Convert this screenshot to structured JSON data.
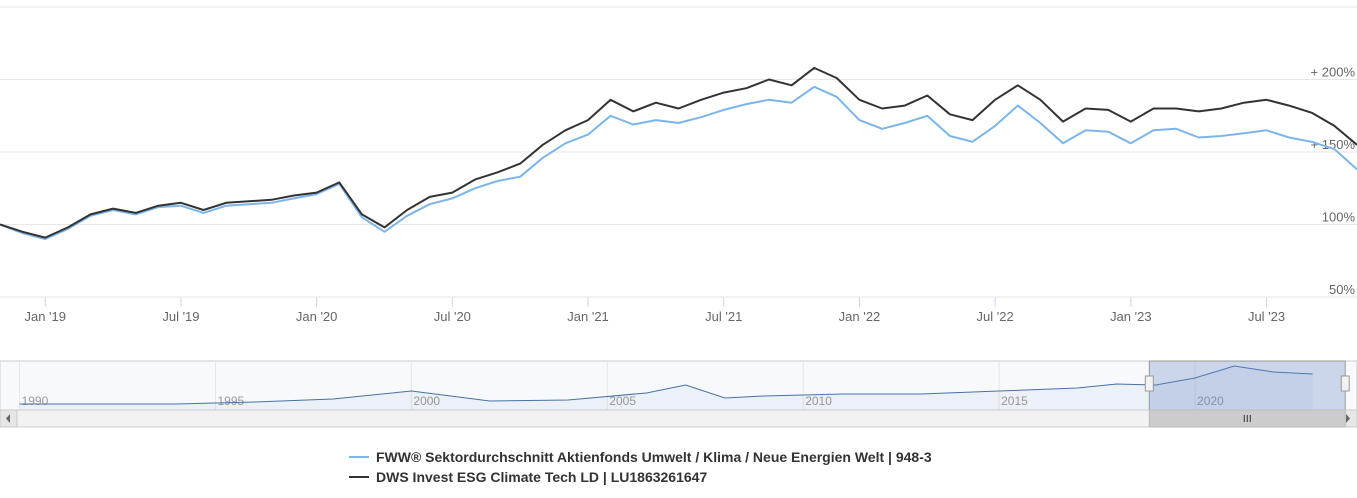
{
  "chart_data": [
    {
      "type": "line",
      "x": [
        "2018-11",
        "2018-12",
        "2019-01",
        "2019-02",
        "2019-03",
        "2019-04",
        "2019-05",
        "2019-06",
        "2019-07",
        "2019-08",
        "2019-09",
        "2019-10",
        "2019-11",
        "2019-12",
        "2020-01",
        "2020-02",
        "2020-03",
        "2020-04",
        "2020-05",
        "2020-06",
        "2020-07",
        "2020-08",
        "2020-09",
        "2020-10",
        "2020-11",
        "2020-12",
        "2021-01",
        "2021-02",
        "2021-03",
        "2021-04",
        "2021-05",
        "2021-06",
        "2021-07",
        "2021-08",
        "2021-09",
        "2021-10",
        "2021-11",
        "2021-12",
        "2022-01",
        "2022-02",
        "2022-03",
        "2022-04",
        "2022-05",
        "2022-06",
        "2022-07",
        "2022-08",
        "2022-09",
        "2022-10",
        "2022-11",
        "2022-12",
        "2023-01",
        "2023-02",
        "2023-03",
        "2023-04",
        "2023-05",
        "2023-06",
        "2023-07",
        "2023-08",
        "2023-09",
        "2023-10",
        "2023-11"
      ],
      "series": [
        {
          "name": "FWW® Sektordurchschnitt Aktienfonds Umwelt / Klima / Neue Energien Welt | 948-3",
          "color": "#7cb5ec",
          "values": [
            100,
            94,
            90,
            97,
            106,
            110,
            107,
            112,
            113,
            108,
            113,
            114,
            115,
            118,
            121,
            128,
            105,
            95,
            106,
            114,
            118,
            125,
            130,
            133,
            146,
            156,
            162,
            175,
            169,
            172,
            170,
            174,
            179,
            183,
            186,
            184,
            195,
            188,
            172,
            166,
            170,
            175,
            161,
            157,
            168,
            182,
            170,
            156,
            165,
            164,
            156,
            165,
            166,
            160,
            161,
            163,
            165,
            160,
            157,
            152,
            138
          ]
        },
        {
          "name": "DWS Invest ESG Climate Tech LD | LU1863261647",
          "color": "#333333",
          "values": [
            100,
            95,
            91,
            98,
            107,
            111,
            108,
            113,
            115,
            110,
            115,
            116,
            117,
            120,
            122,
            129,
            107,
            98,
            110,
            119,
            122,
            131,
            136,
            142,
            155,
            165,
            172,
            186,
            178,
            184,
            180,
            186,
            191,
            194,
            200,
            196,
            208,
            201,
            186,
            180,
            182,
            189,
            176,
            172,
            186,
            196,
            186,
            171,
            180,
            179,
            171,
            180,
            180,
            178,
            180,
            184,
            186,
            182,
            177,
            168,
            155
          ]
        }
      ],
      "xlim": [
        "2018-11",
        "2023-11"
      ],
      "xticks": [
        {
          "value": "2019-01",
          "label": "Jan '19"
        },
        {
          "value": "2019-07",
          "label": "Jul '19"
        },
        {
          "value": "2020-01",
          "label": "Jan '20"
        },
        {
          "value": "2020-07",
          "label": "Jul '20"
        },
        {
          "value": "2021-01",
          "label": "Jan '21"
        },
        {
          "value": "2021-07",
          "label": "Jul '21"
        },
        {
          "value": "2022-01",
          "label": "Jan '22"
        },
        {
          "value": "2022-07",
          "label": "Jul '22"
        },
        {
          "value": "2023-01",
          "label": "Jan '23"
        },
        {
          "value": "2023-07",
          "label": "Jul '23"
        }
      ],
      "ylim": [
        50,
        250
      ],
      "yticks": [
        {
          "value": 50,
          "label": "50%"
        },
        {
          "value": 100,
          "label": "100%"
        },
        {
          "value": 150,
          "label": "+ 150%"
        },
        {
          "value": 200,
          "label": "+ 200%"
        }
      ],
      "grid": true
    },
    {
      "type": "area",
      "x": [
        1990,
        1992,
        1994,
        1996,
        1998,
        2000,
        2002,
        2004,
        2006,
        2007,
        2008,
        2009,
        2011,
        2013,
        2015,
        2017,
        2018,
        2019,
        2020,
        2021,
        2022,
        2023
      ],
      "values": [
        6,
        6,
        6,
        8,
        11,
        19,
        9,
        10,
        17,
        25,
        12,
        14,
        16,
        16,
        19,
        22,
        26,
        25,
        32,
        44,
        38,
        36
      ],
      "color": "#4572a7",
      "xlim": [
        1989.5,
        2023.7
      ],
      "xticks": [
        1990,
        1995,
        2000,
        2005,
        2010,
        2015,
        2020
      ]
    }
  ]
}
